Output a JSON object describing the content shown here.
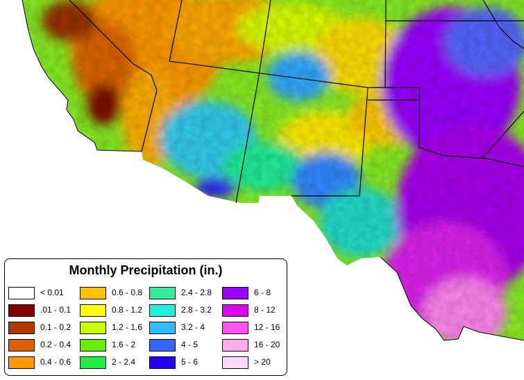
{
  "map": {
    "type": "choropleth",
    "subject": "precipitation"
  },
  "legend": {
    "title": "Monthly Precipitation (in.)",
    "classes": [
      {
        "label": "< 0.01",
        "color": "#ffffff"
      },
      {
        "label": ".01 - 0.1",
        "color": "#7f0000"
      },
      {
        "label": "0.1 - 0.2",
        "color": "#b03a00"
      },
      {
        "label": "0.2 - 0.4",
        "color": "#e06000"
      },
      {
        "label": "0.4 - 0.6",
        "color": "#ff9900"
      },
      {
        "label": "0.6 - 0.8",
        "color": "#ffc000"
      },
      {
        "label": "0.8 - 1.2",
        "color": "#ffff00"
      },
      {
        "label": "1.2 - 1.6",
        "color": "#c8ff00"
      },
      {
        "label": "1.6 - 2",
        "color": "#66ee00"
      },
      {
        "label": "2 - 2.4",
        "color": "#22ee44"
      },
      {
        "label": "2.4 - 2.8",
        "color": "#33ee99"
      },
      {
        "label": "2.8 - 3.2",
        "color": "#22eedd"
      },
      {
        "label": "3.2 - 4",
        "color": "#33bbff"
      },
      {
        "label": "4 - 5",
        "color": "#3366ff"
      },
      {
        "label": "5 - 6",
        "color": "#2200ee"
      },
      {
        "label": "6 - 8",
        "color": "#9900ff"
      },
      {
        "label": "8 - 12",
        "color": "#dd00ee"
      },
      {
        "label": "12 - 16",
        "color": "#ff55ee"
      },
      {
        "label": "16 - 20",
        "color": "#ffaaee"
      },
      {
        "label": "> 20",
        "color": "#ffd6ff"
      }
    ]
  }
}
